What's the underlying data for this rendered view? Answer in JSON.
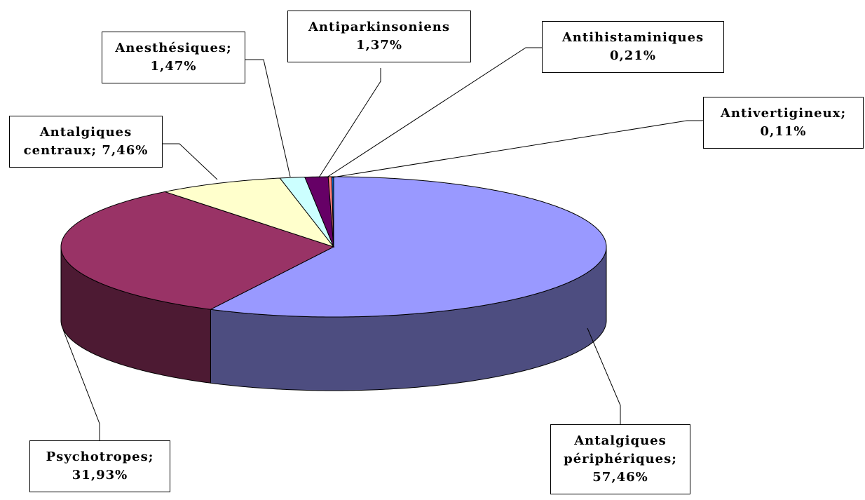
{
  "chart_data": {
    "type": "pie3d",
    "categories": [
      "Antalgiques périphériques;",
      "Psychotropes;",
      "Antalgiques centraux;",
      "Anesthésiques;",
      "Antiparkinsoniens",
      "Antihistaminiques",
      "Antivertigineux;"
    ],
    "values": [
      57.46,
      31.93,
      7.46,
      1.47,
      1.37,
      0.21,
      0.11
    ],
    "value_labels": [
      "57,46%",
      "31,93%",
      "7,46%",
      "1,47%",
      "1,37%",
      "0,21%",
      "0,11%"
    ],
    "colors": [
      "#9999ff",
      "#993366",
      "#ffffcc",
      "#ccffff",
      "#660066",
      "#ff8080",
      "#0066cc"
    ]
  }
}
